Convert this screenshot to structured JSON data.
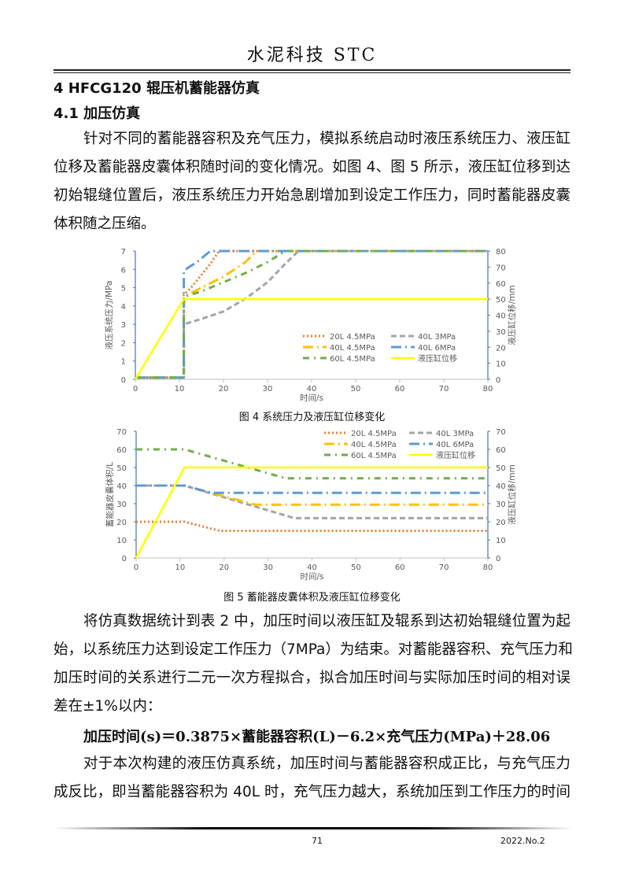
{
  "header": {
    "title": "水泥科技 STC"
  },
  "section": {
    "heading": "4  HFCG120 辊压机蓄能器仿真",
    "subheading": "4.1 加压仿真"
  },
  "para1": [
    "针对不同的蓄能器容积及充气压力，模拟系统启动时液压系统压力、液压缸",
    "位移及蓄能器皮囊体积随时间的变化情况。如图 4、图 5 所示，液压缸位移到达",
    "初始辊缝位置后，液压系统压力开始急剧增加到设定工作压力，同时蓄能器皮囊",
    "体积随之压缩。"
  ],
  "para2": [
    "将仿真数据统计到表 2 中，加压时间以液压缸及辊系到达初始辊缝位置为起",
    "始，以系统压力达到设定工作压力（7MPa）为结束。对蓄能器容积、充气压力和",
    "加压时间的关系进行二元一次方程拟合，拟合加压时间与实际加压时间的相对误",
    "差在±1%以内："
  ],
  "equation": "加压时间(s)＝0.3875×蓄能器容积(L)－6.2×充气压力(MPa)＋28.06",
  "para3": [
    "对于本次构建的液压仿真系统，加压时间与蓄能器容积成正比，与充气压力",
    "成反比，即当蓄能器容积为 40L 时，充气压力越大，系统加压到工作压力的时间"
  ],
  "footer": {
    "page": "71",
    "issue": "2022.No.2"
  },
  "chart_data": [
    {
      "type": "line",
      "caption": "图 4 系统压力及液压缸位移变化",
      "xlabel": "时间/s",
      "ylabel": "液压系统压力/MPa",
      "y2label": "液压缸位移/mm",
      "xlim": [
        0,
        80
      ],
      "ylim": [
        0,
        7
      ],
      "y2lim": [
        0,
        80
      ],
      "xticks": [
        0,
        10,
        20,
        30,
        40,
        50,
        60,
        70,
        80
      ],
      "yticks": [
        0,
        1,
        2,
        3,
        4,
        5,
        6,
        7
      ],
      "y2ticks": [
        0,
        10,
        20,
        30,
        40,
        50,
        60,
        70,
        80
      ],
      "grid": false,
      "legend": "inside-bottom-right",
      "series": [
        {
          "name": "20L 4.5MPa",
          "color": "#ed7d31",
          "style": "dotted",
          "axis": "left",
          "x": [
            0,
            11,
            11,
            13,
            15,
            17,
            19,
            80
          ],
          "y": [
            0.1,
            0.1,
            4.6,
            5.1,
            5.7,
            6.3,
            7,
            7
          ]
        },
        {
          "name": "40L 3MPa",
          "color": "#a5a5a5",
          "style": "dashed",
          "axis": "left",
          "x": [
            0,
            11,
            11,
            15,
            20,
            25,
            30,
            34,
            37,
            80
          ],
          "y": [
            0.1,
            0.1,
            3,
            3.3,
            3.7,
            4.4,
            5.3,
            6.3,
            7,
            7
          ]
        },
        {
          "name": "40L 4.5MPa",
          "color": "#ffc000",
          "style": "longdashdot",
          "axis": "left",
          "x": [
            0,
            11,
            11,
            15,
            20,
            25,
            27.5,
            80
          ],
          "y": [
            0.1,
            0.1,
            4.5,
            5,
            5.6,
            6.4,
            7,
            7
          ]
        },
        {
          "name": "40L 6MPa",
          "color": "#5b9bd5",
          "style": "longdashdot",
          "axis": "left",
          "x": [
            0,
            11,
            11,
            12,
            14,
            17,
            80
          ],
          "y": [
            0.1,
            0.1,
            5.9,
            6.1,
            6.4,
            7,
            7
          ]
        },
        {
          "name": "60L 4.5MPa",
          "color": "#70ad47",
          "style": "dashdot",
          "axis": "left",
          "x": [
            0,
            11,
            11,
            15,
            20,
            25,
            30,
            34,
            80
          ],
          "y": [
            0.1,
            0.1,
            4.5,
            4.8,
            5.3,
            5.8,
            6.4,
            7,
            7
          ]
        },
        {
          "name": "液压缸位移",
          "color": "#ffff00",
          "style": "solid",
          "axis": "right",
          "x": [
            0,
            11,
            80
          ],
          "y": [
            0,
            50,
            50
          ]
        }
      ]
    },
    {
      "type": "line",
      "caption": "图 5 蓄能器皮囊体积及液压缸位移变化",
      "xlabel": "时间/s",
      "ylabel": "蓄能器皮囊体积/L",
      "y2label": "液压缸位移/mm",
      "xlim": [
        0,
        80
      ],
      "ylim": [
        0,
        70
      ],
      "y2lim": [
        0,
        70
      ],
      "xticks": [
        0,
        10,
        20,
        30,
        40,
        50,
        60,
        70,
        80
      ],
      "yticks": [
        0,
        10,
        20,
        30,
        40,
        50,
        60,
        70
      ],
      "y2ticks": [
        0,
        10,
        20,
        30,
        40,
        50,
        60,
        70
      ],
      "grid": false,
      "legend": "top-right",
      "series": [
        {
          "name": "20L 4.5MPa",
          "color": "#ed7d31",
          "style": "dotted",
          "axis": "left",
          "x": [
            0,
            11,
            19,
            80
          ],
          "y": [
            20,
            20,
            15,
            15
          ]
        },
        {
          "name": "40L 3MPa",
          "color": "#a5a5a5",
          "style": "dashed",
          "axis": "left",
          "x": [
            0,
            11,
            36,
            80
          ],
          "y": [
            40,
            40,
            22,
            22
          ]
        },
        {
          "name": "40L 4.5MPa",
          "color": "#ffc000",
          "style": "longdashdot",
          "axis": "left",
          "x": [
            0,
            11,
            27,
            80
          ],
          "y": [
            40,
            40,
            29.5,
            29.5
          ]
        },
        {
          "name": "40L 6MPa",
          "color": "#5b9bd5",
          "style": "longdashdot",
          "axis": "left",
          "x": [
            0,
            11,
            17,
            80
          ],
          "y": [
            40,
            40,
            36,
            36
          ]
        },
        {
          "name": "60L 4.5MPa",
          "color": "#70ad47",
          "style": "dashdot",
          "axis": "left",
          "x": [
            0,
            11,
            34,
            80
          ],
          "y": [
            60,
            60,
            44,
            44
          ]
        },
        {
          "name": "液压缸位移",
          "color": "#ffff00",
          "style": "solid",
          "axis": "right",
          "x": [
            0,
            11,
            80
          ],
          "y": [
            0,
            50,
            50
          ]
        }
      ]
    }
  ]
}
